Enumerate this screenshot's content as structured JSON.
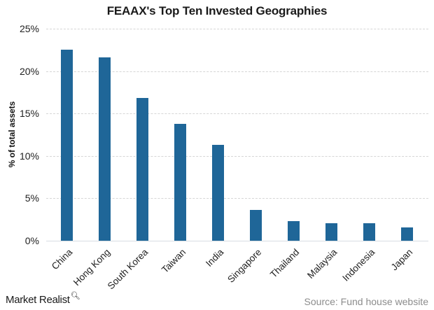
{
  "chart_data": {
    "type": "bar",
    "title": "FEAAX's Top Ten Invested Geographies",
    "xlabel": "",
    "ylabel": "% of total assets",
    "categories": [
      "China",
      "Hong Kong",
      "South Korea",
      "Taiwan",
      "India",
      "Singapore",
      "Thailand",
      "Malaysia",
      "Indonesia",
      "Japan"
    ],
    "values": [
      22.5,
      21.6,
      16.8,
      13.8,
      11.3,
      3.6,
      2.3,
      2.1,
      2.1,
      1.6
    ],
    "ylim": [
      0,
      25
    ],
    "yticks": [
      "0%",
      "5%",
      "10%",
      "15%",
      "20%",
      "25%"
    ],
    "grid": true,
    "legend": null,
    "bar_color": "#1f6698"
  },
  "footer": {
    "brand": "Market Realist",
    "brand_icon": "magnifier-icon",
    "source": "Source: Fund house website"
  }
}
